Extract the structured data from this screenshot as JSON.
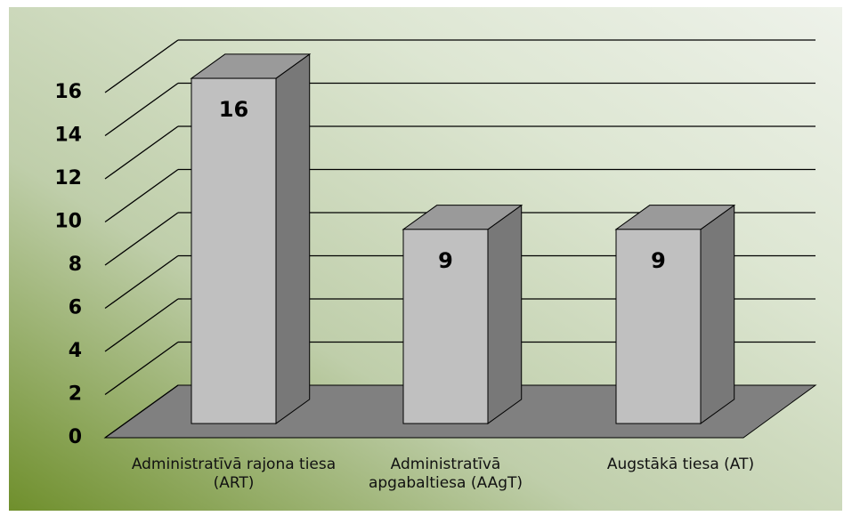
{
  "chart_data": {
    "type": "bar3d",
    "categories": [
      "Administratīvā rajona tiesa (ART)",
      "Administratīvā apgabaltiesa (AAgT)",
      "Augstākā tiesa (AT)"
    ],
    "values": [
      16,
      9,
      9
    ],
    "color": "#c0c0c0",
    "ylim": [
      0,
      16
    ],
    "yticks": [
      0,
      2,
      4,
      6,
      8,
      10,
      12,
      14,
      16
    ],
    "grid": true
  }
}
